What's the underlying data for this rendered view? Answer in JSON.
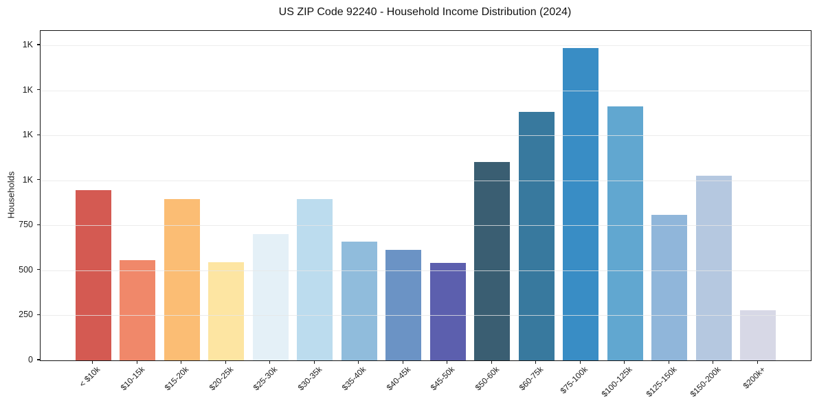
{
  "chart_data": {
    "type": "bar",
    "title": "US ZIP Code 92240 - Household Income Distribution (2024)",
    "xlabel": "",
    "ylabel": "Households",
    "categories": [
      "< $10k",
      "$10-15k",
      "$15-20k",
      "$20-25k",
      "$25-30k",
      "$30-35k",
      "$35-40k",
      "$40-45k",
      "$45-50k",
      "$50-60k",
      "$60-75k",
      "$75-100k",
      "$100-125k",
      "$125-150k",
      "$150-200k",
      "$200k+"
    ],
    "values": [
      945,
      555,
      895,
      545,
      700,
      895,
      660,
      615,
      540,
      1100,
      1380,
      1735,
      1410,
      810,
      1025,
      280
    ],
    "bar_colors": [
      "#d45a52",
      "#f0886a",
      "#fbbd74",
      "#fde5a2",
      "#e4f0f7",
      "#bcdcee",
      "#90bcdc",
      "#6b93c5",
      "#5c5fae",
      "#3a5e72",
      "#38799e",
      "#398dc5",
      "#61a7d0",
      "#90b6da",
      "#b5c8e0",
      "#d7d8e6"
    ],
    "ylim": [
      0,
      1830
    ],
    "yticks": [
      {
        "value": 0,
        "label": "0"
      },
      {
        "value": 250,
        "label": "250"
      },
      {
        "value": 500,
        "label": "500"
      },
      {
        "value": 750,
        "label": "750"
      },
      {
        "value": 1000,
        "label": "1K"
      },
      {
        "value": 1250,
        "label": "1K"
      },
      {
        "value": 1500,
        "label": "1K"
      },
      {
        "value": 1750,
        "label": "1K"
      }
    ],
    "grid": "horizontal",
    "legend": "none",
    "bar_width_fraction": 0.8
  },
  "colors": {
    "background": "#ffffff",
    "spine": "#151515",
    "grid": "#e7e7e7",
    "text": "#1a1a1a"
  }
}
